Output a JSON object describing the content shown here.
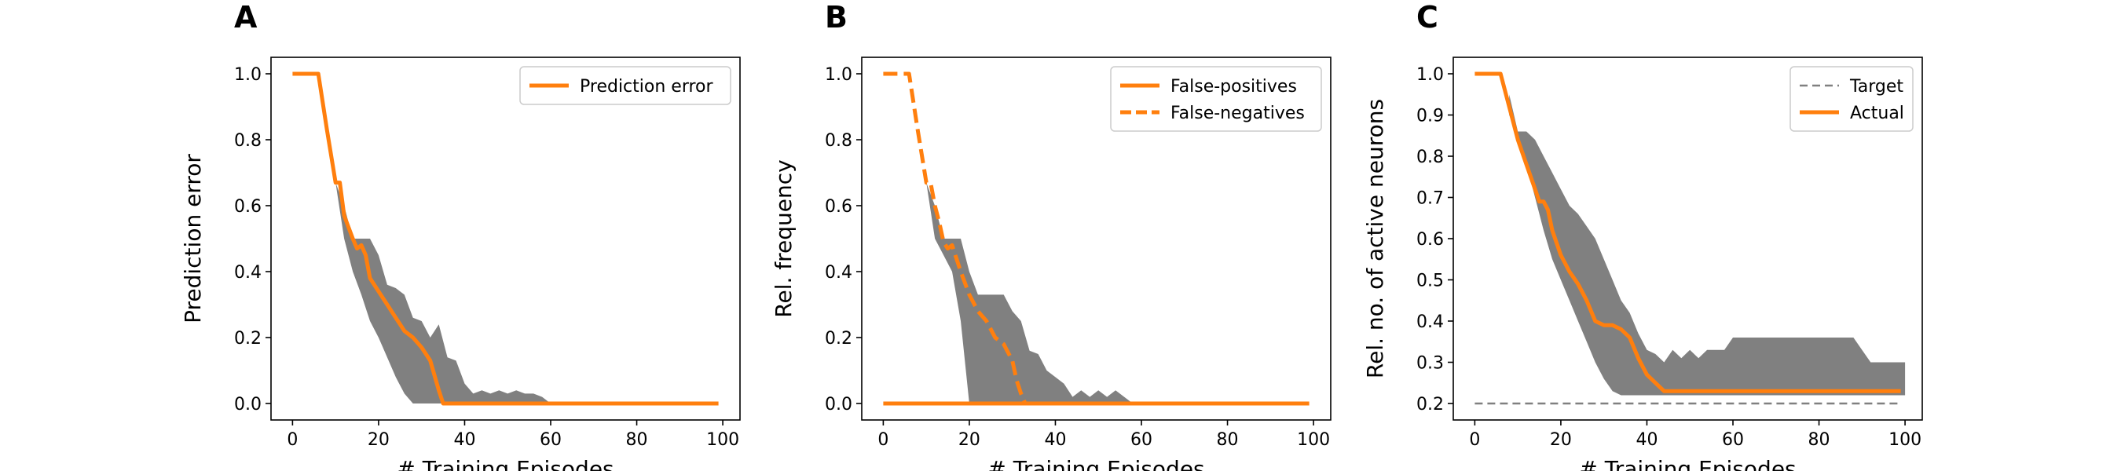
{
  "colors": {
    "line": "#ff7f0e",
    "band": "#808080",
    "target": "#808080",
    "axis": "#000000"
  },
  "chart_data": [
    {
      "type": "line",
      "panel_label": "A",
      "xlabel": "# Training Episodes",
      "ylabel": "Prediction error",
      "xlim": [
        -5,
        104
      ],
      "ylim": [
        -0.05,
        1.05
      ],
      "xticks": [
        0,
        20,
        40,
        60,
        80,
        100
      ],
      "yticks": [
        0.0,
        0.2,
        0.4,
        0.6,
        0.8,
        1.0
      ],
      "ytick_labels": [
        "0.0",
        "0.2",
        "0.4",
        "0.6",
        "0.8",
        "1.0"
      ],
      "legend_position": "upper-right",
      "band": {
        "x": [
          10,
          12,
          14,
          16,
          18,
          20,
          22,
          24,
          26,
          28,
          30,
          32,
          34,
          36,
          38,
          40,
          42,
          44,
          46,
          48,
          50,
          52,
          54,
          56,
          58,
          60
        ],
        "lower": [
          0.67,
          0.5,
          0.4,
          0.33,
          0.25,
          0.2,
          0.14,
          0.08,
          0.03,
          0.0,
          0.0,
          0.0,
          0.0,
          0.0,
          0.0,
          0.0,
          0.0,
          0.0,
          0.0,
          0.0,
          0.0,
          0.0,
          0.0,
          0.0,
          0.0,
          0.0
        ],
        "upper": [
          0.67,
          0.6,
          0.5,
          0.5,
          0.5,
          0.45,
          0.36,
          0.35,
          0.33,
          0.26,
          0.25,
          0.2,
          0.24,
          0.14,
          0.13,
          0.06,
          0.03,
          0.04,
          0.03,
          0.04,
          0.03,
          0.04,
          0.03,
          0.03,
          0.02,
          0.0
        ]
      },
      "series": [
        {
          "name": "Prediction error",
          "style": "solid",
          "x": [
            0,
            6,
            8,
            10,
            11,
            12,
            14,
            15,
            16,
            17,
            18,
            20,
            22,
            24,
            26,
            28,
            30,
            32,
            34,
            35,
            36,
            99
          ],
          "y": [
            1.0,
            1.0,
            0.83,
            0.67,
            0.67,
            0.57,
            0.5,
            0.47,
            0.48,
            0.45,
            0.38,
            0.34,
            0.3,
            0.26,
            0.22,
            0.2,
            0.17,
            0.13,
            0.04,
            0.0,
            0.0,
            0.0
          ]
        }
      ]
    },
    {
      "type": "line",
      "panel_label": "B",
      "xlabel": "# Training Episodes",
      "ylabel": "Rel. frequency",
      "xlim": [
        -5,
        104
      ],
      "ylim": [
        -0.05,
        1.05
      ],
      "xticks": [
        0,
        20,
        40,
        60,
        80,
        100
      ],
      "yticks": [
        0.0,
        0.2,
        0.4,
        0.6,
        0.8,
        1.0
      ],
      "ytick_labels": [
        "0.0",
        "0.2",
        "0.4",
        "0.6",
        "0.8",
        "1.0"
      ],
      "legend_position": "upper-right",
      "band": {
        "x": [
          10,
          12,
          14,
          16,
          18,
          20,
          22,
          24,
          26,
          28,
          30,
          32,
          34,
          36,
          38,
          40,
          42,
          44,
          46,
          48,
          50,
          52,
          54,
          56,
          58
        ],
        "lower": [
          0.67,
          0.5,
          0.45,
          0.4,
          0.25,
          0.0,
          0.0,
          0.0,
          0.0,
          0.0,
          0.0,
          0.0,
          0.0,
          0.0,
          0.0,
          0.0,
          0.0,
          0.0,
          0.0,
          0.0,
          0.0,
          0.0,
          0.0,
          0.0,
          0.0
        ],
        "upper": [
          0.67,
          0.6,
          0.5,
          0.5,
          0.5,
          0.4,
          0.33,
          0.33,
          0.33,
          0.33,
          0.28,
          0.25,
          0.16,
          0.15,
          0.1,
          0.08,
          0.06,
          0.02,
          0.04,
          0.02,
          0.04,
          0.02,
          0.04,
          0.02,
          0.0
        ]
      },
      "series": [
        {
          "name": "False-positives",
          "style": "solid",
          "x": [
            0,
            99
          ],
          "y": [
            0.0,
            0.0
          ]
        },
        {
          "name": "False-negatives",
          "style": "dashed",
          "x": [
            0,
            6,
            8,
            10,
            11,
            12,
            13,
            14,
            15,
            16,
            18,
            20,
            22,
            24,
            26,
            28,
            30,
            31,
            32,
            33
          ],
          "y": [
            1.0,
            1.0,
            0.83,
            0.67,
            0.67,
            0.6,
            0.55,
            0.49,
            0.47,
            0.48,
            0.4,
            0.33,
            0.28,
            0.25,
            0.2,
            0.18,
            0.13,
            0.07,
            0.03,
            0.0
          ]
        }
      ]
    },
    {
      "type": "line",
      "panel_label": "C",
      "xlabel": "# Training Episodes",
      "ylabel": "Rel. no. of active neurons",
      "xlim": [
        -5,
        104
      ],
      "ylim": [
        0.16,
        1.04
      ],
      "xticks": [
        0,
        20,
        40,
        60,
        80,
        100
      ],
      "yticks": [
        0.2,
        0.3,
        0.4,
        0.5,
        0.6,
        0.7,
        0.8,
        0.9,
        1.0
      ],
      "ytick_labels": [
        "0.2",
        "0.3",
        "0.4",
        "0.5",
        "0.6",
        "0.7",
        "0.8",
        "0.9",
        "1.0"
      ],
      "legend_position": "upper-right",
      "band": {
        "x": [
          8,
          10,
          12,
          14,
          16,
          18,
          20,
          22,
          24,
          26,
          28,
          30,
          32,
          34,
          36,
          38,
          40,
          42,
          44,
          46,
          48,
          50,
          52,
          54,
          56,
          58,
          60,
          62,
          64,
          66,
          68,
          70,
          72,
          74,
          76,
          78,
          80,
          82,
          84,
          86,
          88,
          90,
          92,
          94,
          96,
          98,
          100
        ],
        "lower": [
          0.9,
          0.85,
          0.78,
          0.7,
          0.62,
          0.55,
          0.5,
          0.45,
          0.4,
          0.35,
          0.3,
          0.26,
          0.23,
          0.22,
          0.22,
          0.22,
          0.22,
          0.22,
          0.22,
          0.22,
          0.22,
          0.22,
          0.22,
          0.22,
          0.22,
          0.22,
          0.22,
          0.22,
          0.22,
          0.22,
          0.22,
          0.22,
          0.22,
          0.22,
          0.22,
          0.22,
          0.22,
          0.22,
          0.22,
          0.22,
          0.22,
          0.22,
          0.22,
          0.22,
          0.22,
          0.22,
          0.22
        ],
        "upper": [
          0.95,
          0.86,
          0.86,
          0.84,
          0.8,
          0.76,
          0.72,
          0.68,
          0.66,
          0.63,
          0.6,
          0.55,
          0.5,
          0.45,
          0.42,
          0.37,
          0.33,
          0.32,
          0.3,
          0.33,
          0.31,
          0.33,
          0.31,
          0.33,
          0.33,
          0.33,
          0.36,
          0.36,
          0.36,
          0.36,
          0.36,
          0.36,
          0.36,
          0.36,
          0.36,
          0.36,
          0.36,
          0.36,
          0.36,
          0.36,
          0.36,
          0.33,
          0.3,
          0.3,
          0.3,
          0.3,
          0.3
        ]
      },
      "series": [
        {
          "name": "Target",
          "style": "dashed-thin",
          "x": [
            0,
            99
          ],
          "y": [
            0.2,
            0.2
          ]
        },
        {
          "name": "Actual",
          "style": "solid",
          "x": [
            0,
            6,
            8,
            10,
            12,
            14,
            15,
            16,
            17,
            18,
            20,
            22,
            24,
            26,
            28,
            30,
            32,
            34,
            36,
            38,
            40,
            42,
            44,
            99
          ],
          "y": [
            1.0,
            1.0,
            0.92,
            0.84,
            0.78,
            0.72,
            0.69,
            0.69,
            0.67,
            0.62,
            0.56,
            0.52,
            0.49,
            0.45,
            0.4,
            0.39,
            0.39,
            0.38,
            0.36,
            0.31,
            0.27,
            0.25,
            0.23,
            0.23
          ]
        }
      ]
    }
  ]
}
